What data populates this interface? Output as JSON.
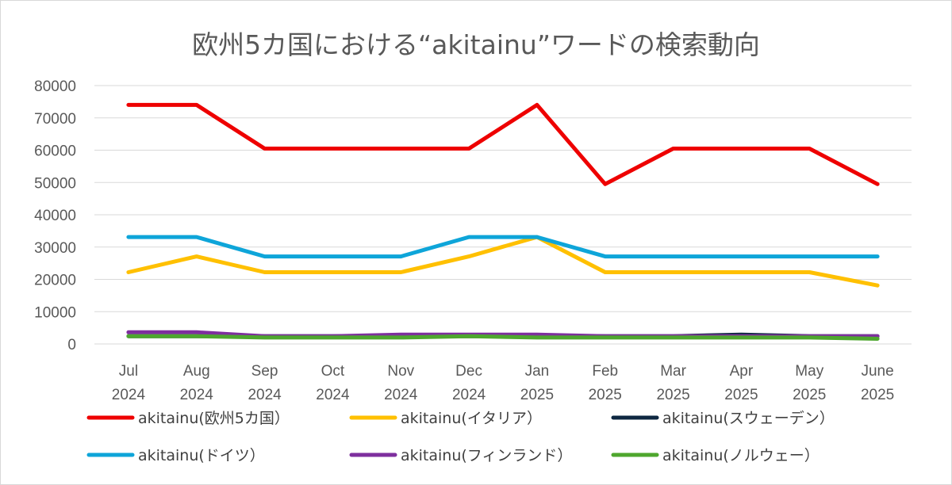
{
  "chart_data": {
    "type": "line",
    "title": "欧州5カ国における“akitainu”ワードの検索動向",
    "xlabel": "",
    "ylabel": "",
    "ylim": [
      0,
      80000
    ],
    "yticks": [
      "0",
      "10000",
      "20000",
      "30000",
      "40000",
      "50000",
      "60000",
      "70000",
      "80000"
    ],
    "categories": [
      [
        "Jul",
        "2024"
      ],
      [
        "Aug",
        "2024"
      ],
      [
        "Sep",
        "2024"
      ],
      [
        "Oct",
        "2024"
      ],
      [
        "Nov",
        "2024"
      ],
      [
        "Dec",
        "2024"
      ],
      [
        "Jan",
        "2025"
      ],
      [
        "Feb",
        "2025"
      ],
      [
        "Mar",
        "2025"
      ],
      [
        "Apr",
        "2025"
      ],
      [
        "May",
        "2025"
      ],
      [
        "June",
        "2025"
      ]
    ],
    "grid": true,
    "legend_position": "bottom",
    "series": [
      {
        "name": "akitainu(欧州5カ国）",
        "color": "#ee0000",
        "values": [
          74000,
          74000,
          60500,
          60500,
          60500,
          60500,
          74000,
          49500,
          60500,
          60500,
          60500,
          49500
        ]
      },
      {
        "name": "akitainu(イタリア）",
        "color": "#ffc000",
        "values": [
          22200,
          27100,
          22200,
          22200,
          22200,
          27100,
          33100,
          22200,
          22200,
          22200,
          22200,
          18100
        ]
      },
      {
        "name": "akitainu(スウェーデン）",
        "color": "#0e2841",
        "values": [
          2400,
          2400,
          2400,
          2400,
          2400,
          2400,
          2400,
          2400,
          2400,
          2900,
          2400,
          2400
        ]
      },
      {
        "name": "akitainu(ドイツ）",
        "color": "#0ea5d9",
        "values": [
          33100,
          33100,
          27100,
          27100,
          27100,
          33100,
          33100,
          27100,
          27100,
          27100,
          27100,
          27100
        ]
      },
      {
        "name": "akitainu(フィンランド）",
        "color": "#7e2f9e",
        "values": [
          3600,
          3600,
          2400,
          2400,
          2900,
          2900,
          2900,
          2400,
          2400,
          2400,
          2400,
          2400
        ]
      },
      {
        "name": "akitainu(ノルウェー）",
        "color": "#4ea72e",
        "values": [
          2400,
          2400,
          2000,
          2000,
          2000,
          2400,
          2000,
          2000,
          2000,
          2000,
          2000,
          1600
        ]
      }
    ]
  }
}
